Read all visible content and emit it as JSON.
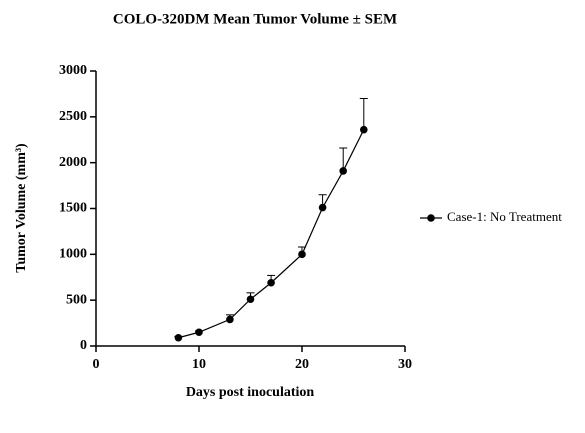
{
  "chart_data": {
    "type": "line",
    "title": "COLO-320DM Mean Tumor Volume ± SEM",
    "x_label": "Days post inoculation",
    "y_label": "Tumor Volume (mm³)",
    "series": [
      {
        "name": "Case-1: No Treatment",
        "color": "#000000",
        "x": [
          8,
          10,
          13,
          15,
          17,
          20,
          22,
          24,
          26
        ],
        "values": [
          90,
          150,
          290,
          510,
          690,
          1000,
          1510,
          1910,
          2360
        ],
        "errors": [
          15,
          15,
          50,
          70,
          80,
          80,
          140,
          250,
          340
        ]
      }
    ],
    "xlim": [
      0,
      30
    ],
    "xticks": [
      0,
      10,
      20,
      30
    ],
    "ylim": [
      0,
      3000
    ],
    "yticks": [
      0,
      500,
      1000,
      1500,
      2000,
      2500,
      3000
    ],
    "legend": "right"
  }
}
